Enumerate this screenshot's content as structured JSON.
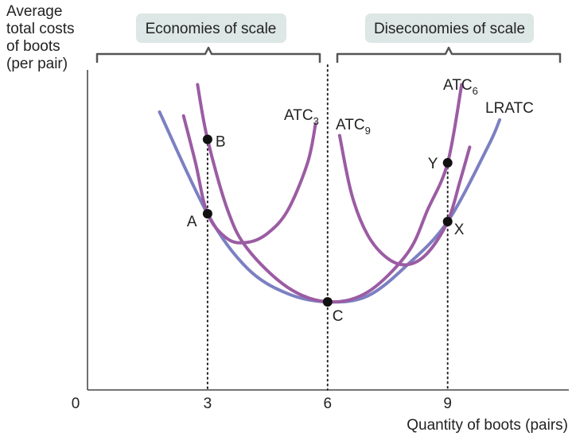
{
  "chart_data": {
    "type": "line",
    "title": "",
    "ylabel": [
      "Average",
      "total costs",
      "of boots",
      "(per pair)"
    ],
    "xlabel": "Quantity of boots (pairs)",
    "origin_label": "0",
    "x_ticks": [
      {
        "value": 3,
        "label": "3"
      },
      {
        "value": 6,
        "label": "6"
      },
      {
        "value": 9,
        "label": "9"
      }
    ],
    "xlim": [
      0,
      12
    ],
    "ylim": [
      0,
      100
    ],
    "grid": false,
    "regions": [
      {
        "label": "Economies of scale",
        "from": 0.2,
        "to": 5.9
      },
      {
        "label": "Diseconomies of scale",
        "from": 6.2,
        "to": 11.9
      }
    ],
    "series": [
      {
        "name": "LRATC",
        "label": "LRATC",
        "color": "#7c80c2",
        "points": [
          [
            1.8,
            71
          ],
          [
            3,
            45
          ],
          [
            4,
            31
          ],
          [
            5,
            24.6
          ],
          [
            6,
            22.5
          ],
          [
            7,
            24
          ],
          [
            8,
            32
          ],
          [
            9,
            43
          ],
          [
            10,
            62
          ],
          [
            10.3,
            69
          ]
        ]
      },
      {
        "name": "ATC3",
        "label": "ATC",
        "subscript": "3",
        "color": "#9b5ca3",
        "points": [
          [
            2.4,
            70
          ],
          [
            2.7,
            58
          ],
          [
            3,
            45
          ],
          [
            3.5,
            38.6
          ],
          [
            4,
            37.7
          ],
          [
            4.5,
            40
          ],
          [
            5,
            45.8
          ],
          [
            5.5,
            58
          ],
          [
            5.7,
            68
          ]
        ]
      },
      {
        "name": "ATC6",
        "label": "ATC",
        "subscript": "6",
        "color": "#9b5ca3",
        "points": [
          [
            2.75,
            78
          ],
          [
            3,
            64
          ],
          [
            3.5,
            46
          ],
          [
            4,
            36
          ],
          [
            5,
            26.2
          ],
          [
            6,
            22.5
          ],
          [
            7,
            25
          ],
          [
            8,
            35
          ],
          [
            8.5,
            46
          ],
          [
            9,
            58
          ],
          [
            9.35,
            78
          ]
        ]
      },
      {
        "name": "ATC9",
        "label": "ATC",
        "subscript": "9",
        "color": "#9b5ca3",
        "points": [
          [
            6.3,
            65
          ],
          [
            6.6,
            50
          ],
          [
            7,
            39.6
          ],
          [
            7.5,
            33.6
          ],
          [
            8,
            32
          ],
          [
            8.5,
            35
          ],
          [
            9,
            43
          ],
          [
            9.3,
            53
          ],
          [
            9.55,
            62
          ]
        ]
      }
    ],
    "points": [
      {
        "label": "A",
        "x": 3,
        "y": 45
      },
      {
        "label": "B",
        "x": 3,
        "y": 64
      },
      {
        "label": "C",
        "x": 6,
        "y": 22.5
      },
      {
        "label": "X",
        "x": 9,
        "y": 43
      },
      {
        "label": "Y",
        "x": 9,
        "y": 58
      }
    ],
    "guides": [
      3,
      6,
      9
    ]
  }
}
